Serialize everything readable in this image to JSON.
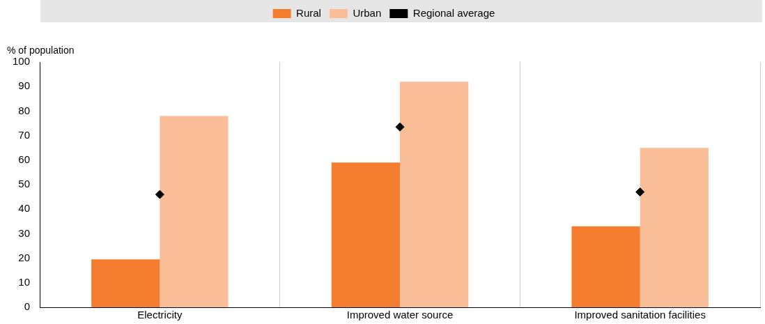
{
  "chart_data": {
    "type": "bar",
    "ylabel": "% of population",
    "categories": [
      "Electricity",
      "Improved water source",
      "Improved sanitation facilities"
    ],
    "series": [
      {
        "name": "Rural",
        "color": "#f47d30",
        "values": [
          19.5,
          59,
          33
        ]
      },
      {
        "name": "Urban",
        "color": "#f9be98",
        "values": [
          78,
          92,
          65
        ]
      },
      {
        "name": "Regional average",
        "type": "scatter",
        "color": "#000000",
        "marker": "diamond",
        "x": [
          "Electricity",
          "Improved water source",
          "Improved sanitation facilities"
        ],
        "values": [
          46,
          73.5,
          47
        ]
      }
    ],
    "ylim": [
      0,
      100
    ],
    "yticks": [
      0,
      10,
      20,
      30,
      40,
      50,
      60,
      70,
      80,
      90,
      100
    ],
    "grid": "x",
    "legend": "top"
  }
}
